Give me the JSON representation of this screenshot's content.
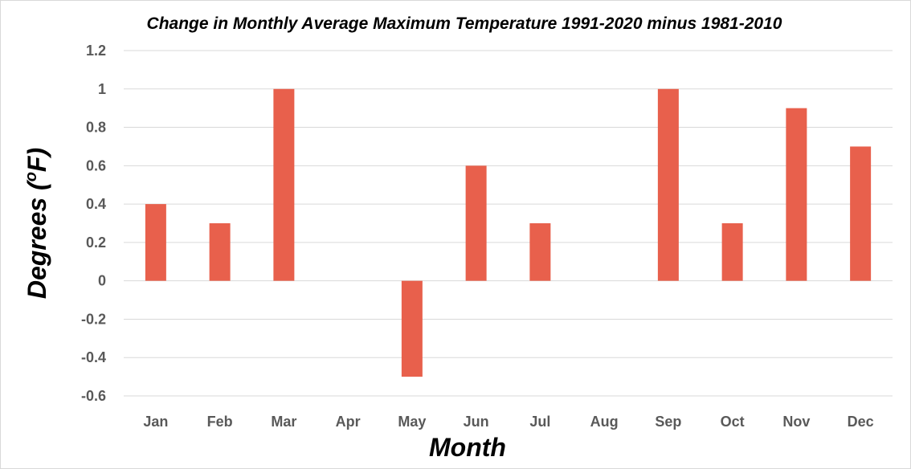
{
  "chart_data": {
    "type": "bar",
    "title": "Change in Monthly Average Maximum Temperature 1991-2020 minus 1981-2010",
    "xlabel": "Month",
    "ylabel": "Degrees (°F)",
    "ylabel_parts": {
      "before": "Degrees (",
      "sup": "o",
      "after": "F)"
    },
    "categories": [
      "Jan",
      "Feb",
      "Mar",
      "Apr",
      "May",
      "Jun",
      "Jul",
      "Aug",
      "Sep",
      "Oct",
      "Nov",
      "Dec"
    ],
    "values": [
      0.4,
      0.3,
      1.0,
      0.0,
      -0.5,
      0.6,
      0.3,
      0.0,
      1.0,
      0.3,
      0.9,
      0.7
    ],
    "ylim": [
      -0.6,
      1.2
    ],
    "yticks": [
      "1.2",
      "1",
      "0.8",
      "0.6",
      "0.4",
      "0.2",
      "0",
      "-0.2",
      "-0.4",
      "-0.6"
    ],
    "grid": true,
    "legend": "none",
    "bar_color": "#E8604C"
  }
}
